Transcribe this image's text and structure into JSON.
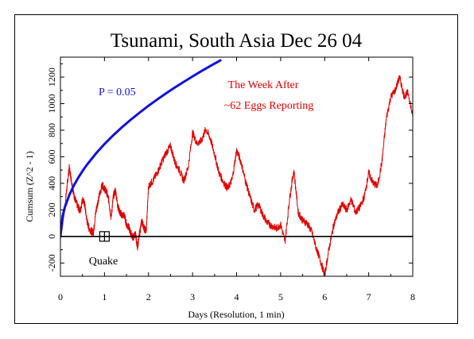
{
  "chart_data": {
    "type": "line",
    "title": "Tsunami, South Asia Dec 26 04",
    "xlabel": "Days (Resolution, 1 min)",
    "ylabel": "Cumsum (Z^2 - 1)",
    "xlim": [
      0,
      8
    ],
    "ylim": [
      -300,
      1350
    ],
    "x_ticks": [
      0,
      1,
      2,
      3,
      4,
      5,
      6,
      7,
      8
    ],
    "y_ticks": [
      -200,
      0,
      200,
      400,
      600,
      800,
      1000,
      1200
    ],
    "grid": false,
    "colors": {
      "cumsum": "#e00000",
      "p05": "#1010e0",
      "baseline": "#000000"
    },
    "series": [
      {
        "role": "cumsum",
        "x": [
          0,
          0.05,
          0.1,
          0.15,
          0.2,
          0.25,
          0.3,
          0.35,
          0.4,
          0.45,
          0.5,
          0.55,
          0.6,
          0.65,
          0.7,
          0.75,
          0.8,
          0.85,
          0.9,
          0.95,
          1.0,
          1.05,
          1.1,
          1.15,
          1.2,
          1.25,
          1.3,
          1.35,
          1.4,
          1.45,
          1.5,
          1.55,
          1.6,
          1.65,
          1.7,
          1.75,
          1.8,
          1.85,
          1.9,
          1.95,
          2.0,
          2.1,
          2.2,
          2.3,
          2.4,
          2.5,
          2.6,
          2.7,
          2.8,
          2.9,
          3.0,
          3.1,
          3.2,
          3.3,
          3.4,
          3.5,
          3.6,
          3.7,
          3.8,
          3.9,
          4.0,
          4.1,
          4.2,
          4.3,
          4.4,
          4.5,
          4.6,
          4.7,
          4.8,
          4.9,
          5.0,
          5.1,
          5.2,
          5.3,
          5.4,
          5.5,
          5.6,
          5.7,
          5.8,
          5.9,
          6.0,
          6.1,
          6.2,
          6.3,
          6.4,
          6.5,
          6.6,
          6.7,
          6.8,
          6.9,
          7.0,
          7.1,
          7.2,
          7.3,
          7.4,
          7.5,
          7.6,
          7.7,
          7.8,
          7.9,
          8.0
        ],
        "y": [
          0,
          100,
          220,
          380,
          520,
          420,
          320,
          260,
          220,
          190,
          280,
          240,
          120,
          60,
          40,
          30,
          180,
          260,
          330,
          390,
          360,
          330,
          270,
          140,
          300,
          350,
          230,
          180,
          160,
          160,
          90,
          70,
          20,
          -10,
          20,
          -80,
          30,
          120,
          60,
          40,
          380,
          420,
          480,
          560,
          630,
          680,
          560,
          500,
          420,
          520,
          780,
          700,
          720,
          810,
          740,
          620,
          480,
          410,
          360,
          430,
          650,
          560,
          420,
          300,
          200,
          240,
          160,
          100,
          80,
          60,
          90,
          -40,
          280,
          500,
          180,
          120,
          100,
          40,
          -80,
          -180,
          -290,
          -90,
          80,
          180,
          240,
          200,
          280,
          180,
          220,
          300,
          480,
          400,
          380,
          560,
          890,
          1050,
          1100,
          1200,
          1060,
          1080,
          900
        ]
      },
      {
        "role": "p05",
        "name": "P = 0.05",
        "x": [
          0,
          0.05,
          0.1,
          0.2,
          0.3,
          0.4,
          0.5,
          0.6,
          0.8,
          1.0,
          1.2,
          1.4,
          1.6,
          1.8,
          2.0,
          2.2,
          2.4,
          2.6,
          2.8,
          3.0,
          3.2,
          3.4,
          3.6,
          3.65
        ],
        "y": [
          0,
          155,
          220,
          311,
          381,
          440,
          492,
          539,
          622,
          696,
          762,
          823,
          880,
          933,
          984,
          1032,
          1078,
          1122,
          1164,
          1205,
          1245,
          1283,
          1320,
          1330
        ]
      },
      {
        "role": "baseline",
        "x": [
          0,
          8
        ],
        "y": [
          0,
          0
        ]
      }
    ],
    "annotations": [
      {
        "id": "p05-label",
        "text": "P = 0.05",
        "color": "#1010e0"
      },
      {
        "id": "week-after",
        "text": "The Week After",
        "color": "#e00000"
      },
      {
        "id": "eggs-reporting",
        "text": "~62 Eggs Reporting",
        "color": "#e00000"
      },
      {
        "id": "quake-label",
        "text": "Quake",
        "color": "#000000"
      }
    ],
    "markers": [
      {
        "id": "quake-marker",
        "symbol": "boxed-plus",
        "x": 1.0,
        "y": 0
      }
    ]
  }
}
